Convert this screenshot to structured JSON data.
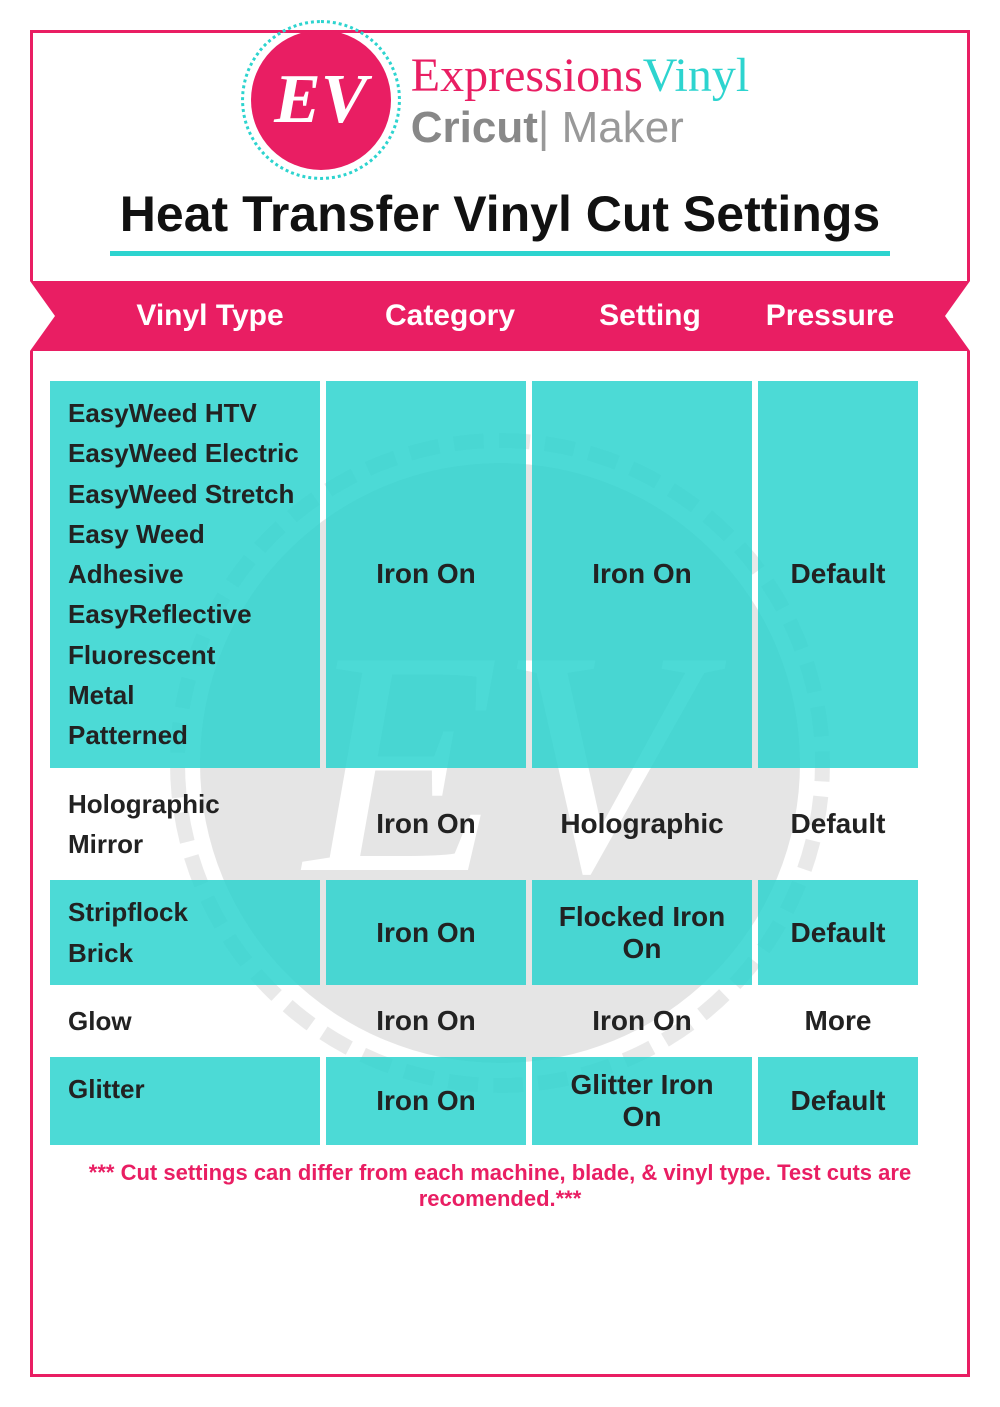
{
  "brand": {
    "ev_initials": "EV",
    "expressions_pink": "Expressions",
    "expressions_teal": "Vinyl",
    "cricut": "Cricut",
    "maker": " Maker"
  },
  "title": "Heat Transfer Vinyl Cut Settings",
  "columns": {
    "c1": "Vinyl Type",
    "c2": "Category",
    "c3": "Setting",
    "c4": "Pressure"
  },
  "rows": {
    "r1": {
      "types": [
        "EasyWeed HTV",
        "EasyWeed Electric",
        "EasyWeed Stretch",
        "Easy Weed Adhesive",
        "EasyReflective",
        "Fluorescent",
        "Metal",
        "Patterned"
      ],
      "category": "Iron On",
      "setting": "Iron On",
      "pressure": "Default"
    },
    "r2": {
      "types": [
        "Holographic",
        "Mirror"
      ],
      "category": "Iron On",
      "setting": "Holographic",
      "pressure": "Default"
    },
    "r3": {
      "types": [
        "Stripflock",
        "Brick"
      ],
      "category": "Iron On",
      "setting": "Flocked Iron On",
      "pressure": "Default"
    },
    "r4": {
      "types": [
        "Glow"
      ],
      "category": "Iron On",
      "setting": "Iron On",
      "pressure": "More"
    },
    "r5": {
      "types": [
        "Glitter"
      ],
      "category": "Iron On",
      "setting": "Glitter Iron On",
      "pressure": "Default"
    }
  },
  "footnote": "*** Cut settings can differ from each machine, blade, & vinyl type. Test cuts are recomended.***",
  "colors": {
    "pink": "#e91e63",
    "teal": "#2dd4cf",
    "gray": "#888888"
  }
}
